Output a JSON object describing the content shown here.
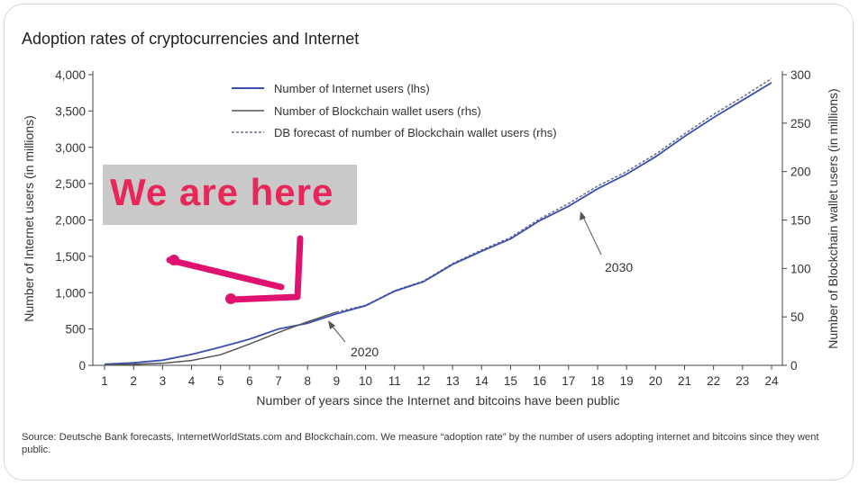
{
  "title": "Adoption rates of cryptocurrencies and Internet",
  "source": "Source: Deutsche Bank forecasts, InternetWorldStats.com and Blockchain.com. We measure “adoption rate” by the number of users adopting internet and bitcoins since they went public.",
  "overlay": {
    "text": "We are here",
    "text_color": "#e8265a",
    "box_color": "#c9c9c9",
    "arrow_color": "#e0126f"
  },
  "colors": {
    "internet": "#3a4fb0",
    "blockchain": "#555555",
    "forecast": "#6a6a8a"
  },
  "chart_data": {
    "type": "line",
    "xlabel": "Number of years since the Internet and bitcoins have been public",
    "ylabel_left": "Number of Internet users (in millions)",
    "ylabel_right": "Number of Blockchain wallet users (in millions)",
    "x": [
      1,
      2,
      3,
      4,
      5,
      6,
      7,
      8,
      9,
      10,
      11,
      12,
      13,
      14,
      15,
      16,
      17,
      18,
      19,
      20,
      21,
      22,
      23,
      24
    ],
    "xlim": [
      1,
      24
    ],
    "ylim_left": [
      0,
      4000
    ],
    "ylim_right": [
      0,
      300
    ],
    "yticks_left": [
      "0",
      "500",
      "1,000",
      "1,500",
      "2,000",
      "2,500",
      "3,000",
      "3,500",
      "4,000"
    ],
    "yticks_right": [
      "0",
      "50",
      "100",
      "150",
      "200",
      "250",
      "300"
    ],
    "legend_position": "top",
    "series": [
      {
        "name": "Number of Internet users (lhs)",
        "axis": "left",
        "style": "solid",
        "x": [
          1,
          2,
          3,
          4,
          5,
          6,
          7,
          8,
          9,
          10,
          11,
          12,
          13,
          14,
          15,
          16,
          17,
          18,
          19,
          20,
          21,
          22,
          23,
          24
        ],
        "values": [
          15,
          35,
          70,
          150,
          250,
          360,
          500,
          580,
          710,
          820,
          1020,
          1150,
          1390,
          1570,
          1740,
          1990,
          2190,
          2430,
          2630,
          2870,
          3150,
          3410,
          3650,
          3890
        ]
      },
      {
        "name": "Number of Blockchain wallet users (rhs)",
        "axis": "right",
        "style": "solid",
        "x": [
          1,
          2,
          3,
          4,
          5,
          6,
          7,
          8,
          9
        ],
        "values": [
          0.3,
          1,
          2,
          5,
          11,
          22,
          34,
          45,
          55
        ]
      },
      {
        "name": "DB forecast of number of Blockchain wallet users (rhs)",
        "axis": "right",
        "style": "dashed",
        "x": [
          9,
          10,
          11,
          12,
          13,
          14,
          15,
          16,
          17,
          18,
          19,
          20,
          21,
          22,
          23,
          24
        ],
        "values": [
          55,
          62,
          77,
          87,
          105,
          119,
          132,
          151,
          167,
          185,
          200,
          218,
          239,
          259,
          277,
          296
        ]
      }
    ],
    "annotations": [
      {
        "label": "2020",
        "x": 9
      },
      {
        "label": "2030",
        "x": 17
      }
    ]
  }
}
